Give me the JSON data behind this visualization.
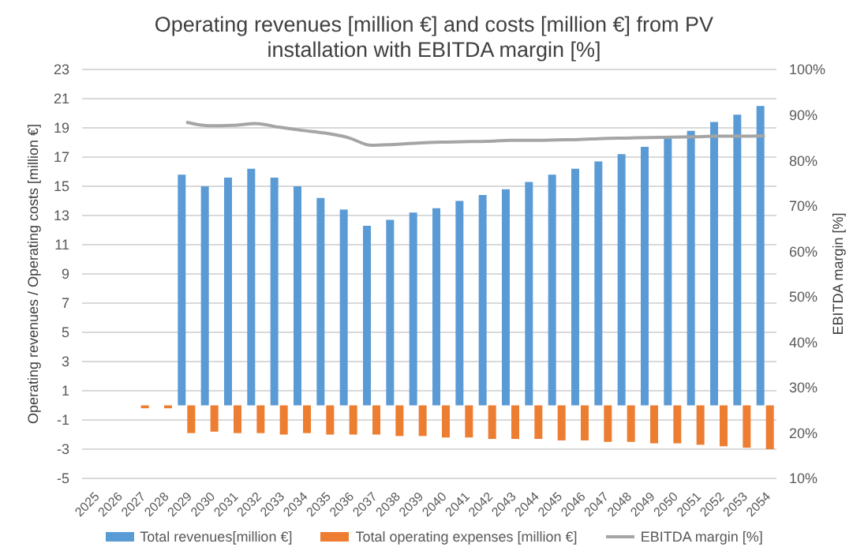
{
  "chart_data": {
    "type": "bar",
    "title": "Operating revenues [million €] and costs [million €] from PV installation with EBITDA margin [%]",
    "ylabel": "Operating revenues / Operating costs [million €]",
    "y2label": "EBITDA margin [%]",
    "categories": [
      "2025",
      "2026",
      "2027",
      "2028",
      "2029",
      "2030",
      "2031",
      "2032",
      "2033",
      "2034",
      "2035",
      "2036",
      "2037",
      "2038",
      "2039",
      "2040",
      "2041",
      "2042",
      "2043",
      "2044",
      "2045",
      "2046",
      "2047",
      "2048",
      "2049",
      "2050",
      "2051",
      "2052",
      "2053",
      "2054"
    ],
    "series": [
      {
        "name": "Total revenues[million €]",
        "color": "#5b9bd5",
        "values": [
          null,
          null,
          null,
          null,
          15.8,
          15.0,
          15.6,
          16.2,
          15.6,
          15.0,
          14.2,
          13.4,
          12.3,
          12.7,
          13.2,
          13.5,
          14.0,
          14.4,
          14.8,
          15.3,
          15.8,
          16.2,
          16.7,
          17.2,
          17.7,
          18.3,
          18.8,
          19.4,
          19.9,
          20.5
        ]
      },
      {
        "name": "Total operating expenses [million €]",
        "color": "#ed7d31",
        "values": [
          null,
          null,
          -0.2,
          -0.2,
          -1.9,
          -1.8,
          -1.9,
          -1.9,
          -2.0,
          -1.9,
          -2.0,
          -2.0,
          -2.0,
          -2.1,
          -2.1,
          -2.2,
          -2.2,
          -2.3,
          -2.3,
          -2.3,
          -2.4,
          -2.4,
          -2.5,
          -2.5,
          -2.6,
          -2.6,
          -2.7,
          -2.8,
          -2.9,
          -3.0
        ]
      },
      {
        "name": "EBITDA margin [%]",
        "type": "line",
        "axis": "y2",
        "color": "#a5a5a5",
        "values": [
          null,
          null,
          null,
          null,
          88.4,
          87.6,
          87.7,
          88.1,
          87.3,
          86.6,
          86.0,
          85.0,
          83.3,
          83.5,
          83.8,
          84.0,
          84.1,
          84.2,
          84.4,
          84.4,
          84.5,
          84.6,
          84.8,
          84.9,
          85.0,
          85.1,
          85.2,
          85.3,
          85.3,
          85.4
        ]
      }
    ],
    "ylim": [
      -5,
      23
    ],
    "yticks": [
      -5,
      -3,
      -1,
      1,
      3,
      5,
      7,
      9,
      11,
      13,
      15,
      17,
      19,
      21,
      23
    ],
    "y2lim": [
      10,
      100
    ],
    "y2ticks": [
      {
        "value": 10,
        "label": "10%"
      },
      {
        "value": 20,
        "label": "20%"
      },
      {
        "value": 30,
        "label": "30%"
      },
      {
        "value": 40,
        "label": "40%"
      },
      {
        "value": 50,
        "label": "50%"
      },
      {
        "value": 60,
        "label": "60%"
      },
      {
        "value": 70,
        "label": "70%"
      },
      {
        "value": 80,
        "label": "80%"
      },
      {
        "value": 90,
        "label": "90%"
      },
      {
        "value": 100,
        "label": "100%"
      }
    ],
    "grid": "y",
    "legend": "bottom",
    "marker": "none"
  }
}
